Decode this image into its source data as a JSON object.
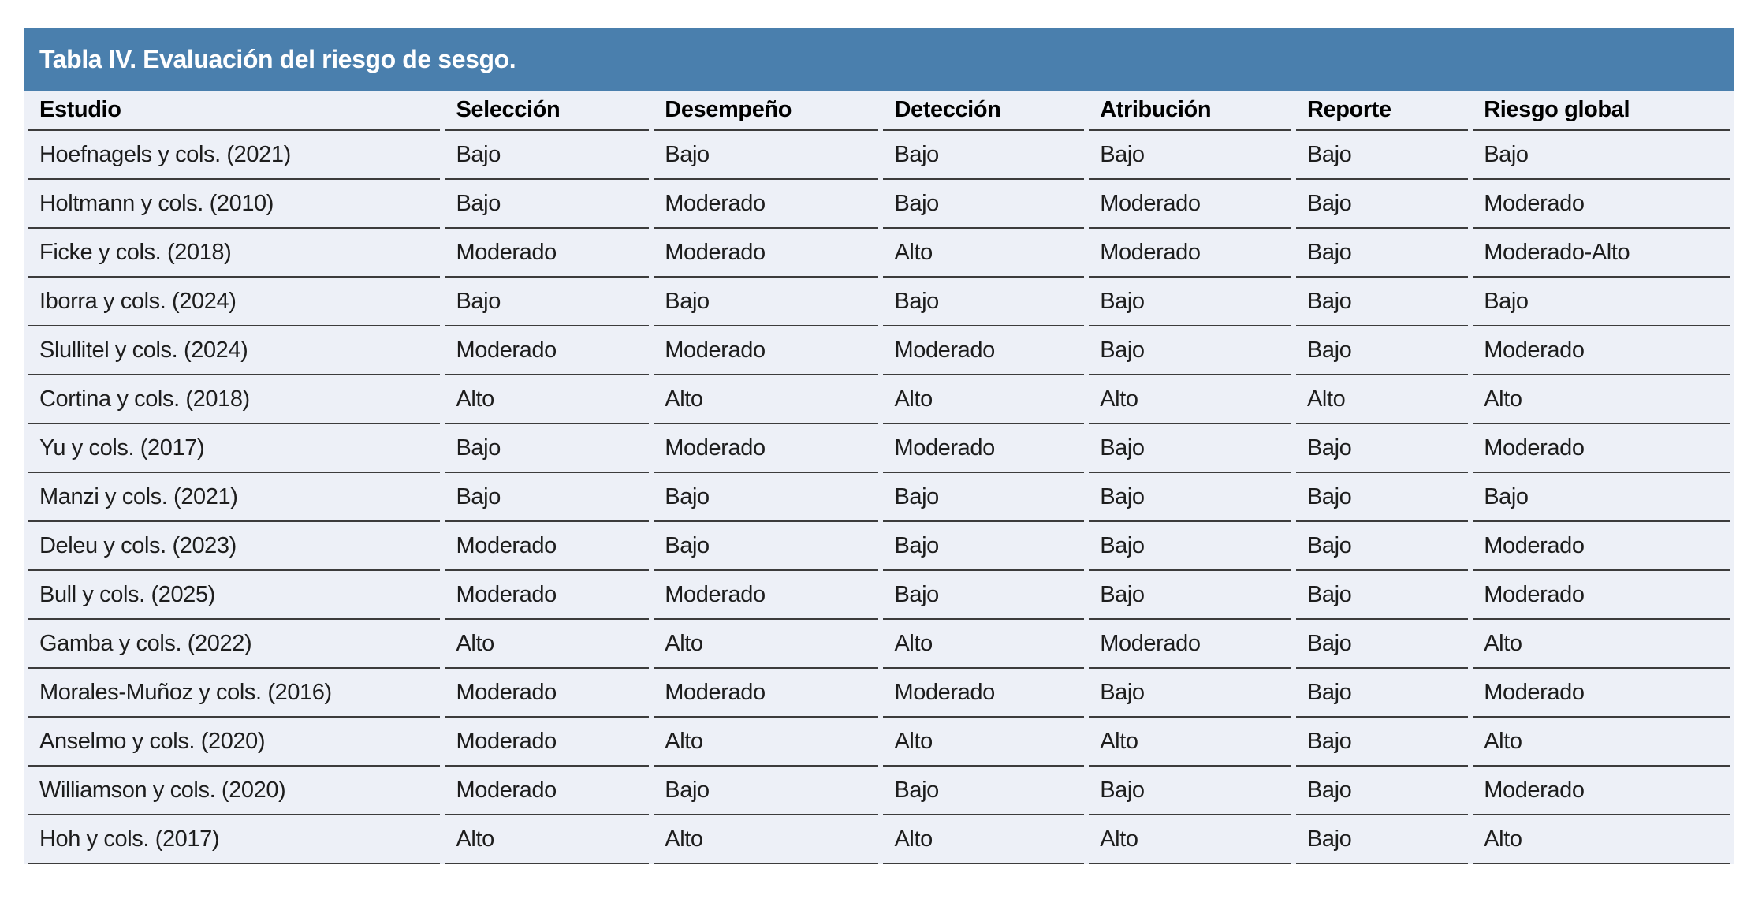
{
  "title": "Tabla IV. Evaluación del riesgo de sesgo.",
  "colors": {
    "header_bg": "#4a7fad",
    "title_text": "#ffffff",
    "row_bg": "#edf0f7",
    "border": "#3c3c3c",
    "cell_text": "#1d1d1d"
  },
  "table": {
    "columns": [
      "Estudio",
      "Selección",
      "Desempeño",
      "Detección",
      "Atribución",
      "Reporte",
      "Riesgo global"
    ],
    "rows": [
      [
        "Hoefnagels y cols. (2021)",
        "Bajo",
        "Bajo",
        "Bajo",
        "Bajo",
        "Bajo",
        "Bajo"
      ],
      [
        "Holtmann y cols. (2010)",
        "Bajo",
        "Moderado",
        "Bajo",
        "Moderado",
        "Bajo",
        "Moderado"
      ],
      [
        "Ficke y cols. (2018)",
        "Moderado",
        "Moderado",
        "Alto",
        "Moderado",
        "Bajo",
        "Moderado-Alto"
      ],
      [
        "Iborra y cols. (2024)",
        "Bajo",
        "Bajo",
        "Bajo",
        "Bajo",
        "Bajo",
        "Bajo"
      ],
      [
        "Slullitel y cols. (2024)",
        "Moderado",
        "Moderado",
        "Moderado",
        "Bajo",
        "Bajo",
        "Moderado"
      ],
      [
        "Cortina y cols. (2018)",
        "Alto",
        "Alto",
        "Alto",
        "Alto",
        "Alto",
        "Alto"
      ],
      [
        "Yu y cols. (2017)",
        "Bajo",
        "Moderado",
        "Moderado",
        "Bajo",
        "Bajo",
        "Moderado"
      ],
      [
        "Manzi y cols. (2021)",
        "Bajo",
        "Bajo",
        "Bajo",
        "Bajo",
        "Bajo",
        "Bajo"
      ],
      [
        "Deleu y cols. (2023)",
        "Moderado",
        "Bajo",
        "Bajo",
        "Bajo",
        "Bajo",
        "Moderado"
      ],
      [
        "Bull y cols. (2025)",
        "Moderado",
        "Moderado",
        "Bajo",
        "Bajo",
        "Bajo",
        "Moderado"
      ],
      [
        "Gamba y cols. (2022)",
        "Alto",
        "Alto",
        "Alto",
        "Moderado",
        "Bajo",
        "Alto"
      ],
      [
        "Morales-Muñoz y cols. (2016)",
        "Moderado",
        "Moderado",
        "Moderado",
        "Bajo",
        "Bajo",
        "Moderado"
      ],
      [
        "Anselmo y cols. (2020)",
        "Moderado",
        "Alto",
        "Alto",
        "Alto",
        "Bajo",
        "Alto"
      ],
      [
        "Williamson y cols. (2020)",
        "Moderado",
        "Bajo",
        "Bajo",
        "Bajo",
        "Bajo",
        "Moderado"
      ],
      [
        "Hoh y cols. (2017)",
        "Alto",
        "Alto",
        "Alto",
        "Alto",
        "Bajo",
        "Alto"
      ]
    ]
  }
}
